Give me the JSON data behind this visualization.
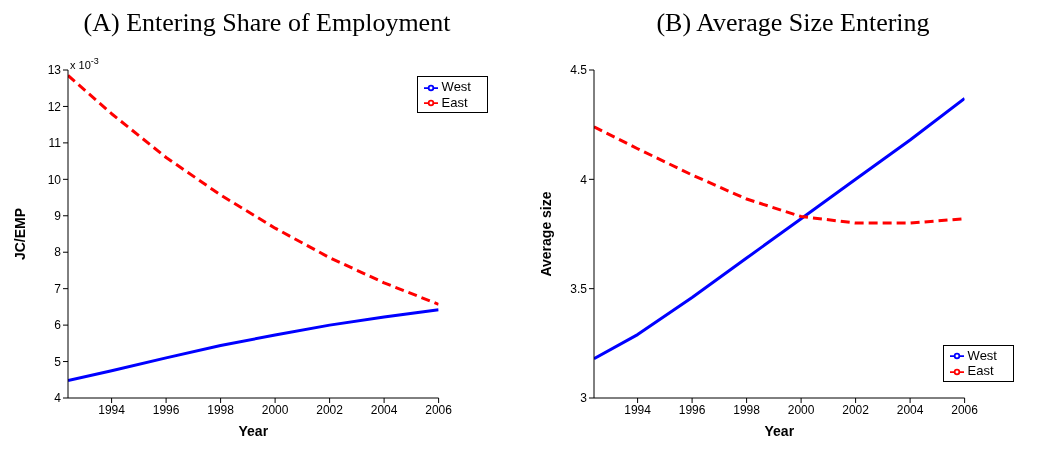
{
  "chart_data": [
    {
      "type": "line",
      "title": "(A) Entering Share of Employment",
      "xlabel": "Year",
      "ylabel": "JC/EMP",
      "annotations": [
        "x 10$^{-3}$"
      ],
      "legend": "top right",
      "xlim": [
        1992.4,
        2006
      ],
      "xticks": [
        1994,
        1996,
        1998,
        2000,
        2002,
        2004,
        2006
      ],
      "ylim": [
        4,
        13
      ],
      "yticks": [
        4,
        5,
        6,
        7,
        8,
        9,
        10,
        11,
        12,
        13
      ],
      "x": [
        1992.4,
        1994,
        1996,
        1998,
        2000,
        2002,
        2004,
        2006
      ],
      "series": [
        {
          "name": "West",
          "color": "#0000ff",
          "line_style": "solid",
          "values": [
            4.48,
            4.75,
            5.1,
            5.44,
            5.73,
            6.0,
            6.22,
            6.42
          ]
        },
        {
          "name": "East",
          "color": "#ff0000",
          "line_style": "dashed",
          "values": [
            12.85,
            11.8,
            10.6,
            9.57,
            8.66,
            7.85,
            7.16,
            6.57
          ]
        }
      ]
    },
    {
      "type": "line",
      "title": "(B) Average Size Entering",
      "xlabel": "Year",
      "ylabel": "Average size",
      "legend": "bottom right",
      "xlim": [
        1992.4,
        2006
      ],
      "xticks": [
        1994,
        1996,
        1998,
        2000,
        2002,
        2004,
        2006
      ],
      "ylim": [
        3,
        4.5
      ],
      "yticks": [
        3,
        3.5,
        4,
        4.5
      ],
      "x": [
        1992.4,
        1994,
        1996,
        1998,
        2000,
        2002,
        2004,
        2006
      ],
      "series": [
        {
          "name": "West",
          "color": "#0000ff",
          "line_style": "solid",
          "values": [
            3.18,
            3.29,
            3.46,
            3.64,
            3.82,
            4.0,
            4.18,
            4.37
          ]
        },
        {
          "name": "East",
          "color": "#ff0000",
          "line_style": "dashed",
          "values": [
            4.24,
            4.14,
            4.02,
            3.91,
            3.83,
            3.8,
            3.8,
            3.82
          ]
        }
      ]
    }
  ]
}
